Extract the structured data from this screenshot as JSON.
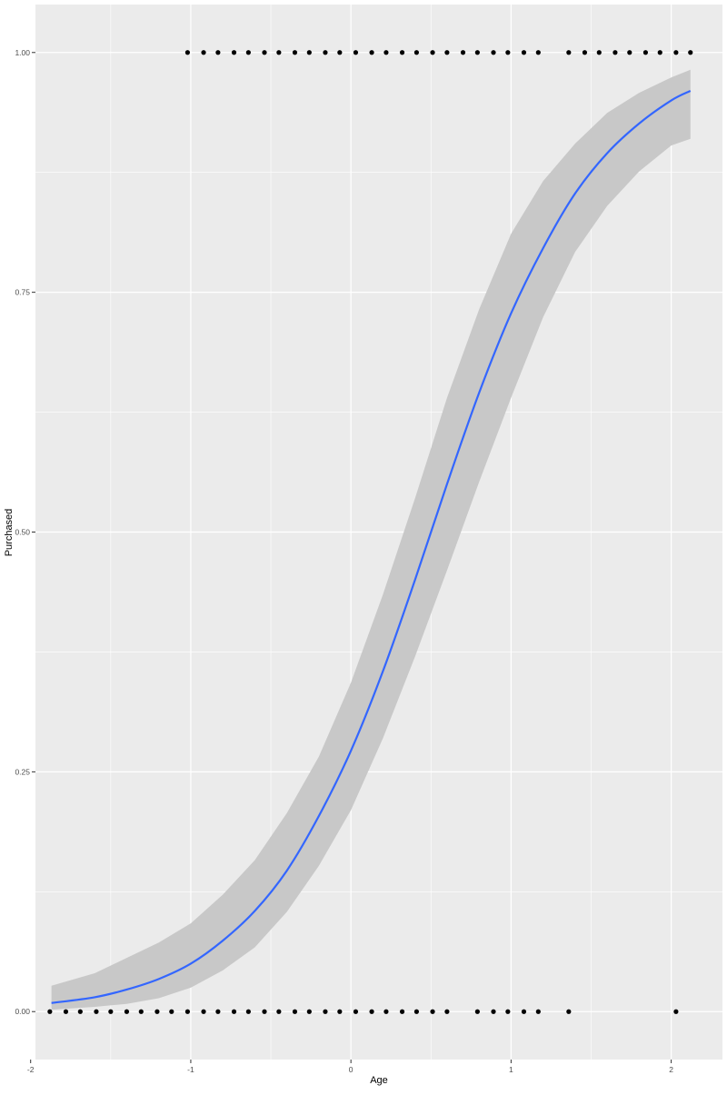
{
  "chart_data": {
    "type": "scatter",
    "title": "",
    "xlabel": "Age",
    "ylabel": "Purchased",
    "xlim": [
      -1.97,
      2.32
    ],
    "ylim": [
      -0.05,
      1.05
    ],
    "grid": true,
    "x_ticks": [
      {
        "value": -2,
        "label": "-2"
      },
      {
        "value": -1,
        "label": "-1"
      },
      {
        "value": 0,
        "label": "0"
      },
      {
        "value": 1,
        "label": "1"
      },
      {
        "value": 2,
        "label": "2"
      }
    ],
    "y_ticks": [
      {
        "value": 0.0,
        "label": "0.00"
      },
      {
        "value": 0.25,
        "label": "0.25"
      },
      {
        "value": 0.5,
        "label": "0.50"
      },
      {
        "value": 0.75,
        "label": "0.75"
      },
      {
        "value": 1.0,
        "label": "1.00"
      }
    ],
    "points_purchased_1": [
      -1.02,
      -0.92,
      -0.83,
      -0.73,
      -0.64,
      -0.54,
      -0.45,
      -0.35,
      -0.26,
      -0.16,
      -0.07,
      0.03,
      0.13,
      0.22,
      0.32,
      0.41,
      0.51,
      0.6,
      0.7,
      0.79,
      0.89,
      0.98,
      1.08,
      1.17,
      1.36,
      1.46,
      1.55,
      1.65,
      1.74,
      1.84,
      1.93,
      2.03,
      2.12
    ],
    "points_purchased_0": [
      -1.88,
      -1.78,
      -1.69,
      -1.59,
      -1.5,
      -1.4,
      -1.31,
      -1.21,
      -1.12,
      -1.02,
      -0.92,
      -0.83,
      -0.73,
      -0.64,
      -0.54,
      -0.45,
      -0.35,
      -0.26,
      -0.16,
      -0.07,
      0.03,
      0.13,
      0.22,
      0.32,
      0.41,
      0.51,
      0.6,
      0.79,
      0.89,
      0.98,
      1.08,
      1.17,
      1.36,
      2.03
    ],
    "fit_curve": {
      "method": "logistic",
      "color": "#3366FF",
      "x": [
        -1.87,
        -1.6,
        -1.4,
        -1.2,
        -1.0,
        -0.8,
        -0.6,
        -0.4,
        -0.2,
        0.0,
        0.2,
        0.4,
        0.6,
        0.8,
        1.0,
        1.2,
        1.4,
        1.6,
        1.8,
        2.0,
        2.12
      ],
      "y": [
        0.009,
        0.015,
        0.023,
        0.034,
        0.05,
        0.074,
        0.105,
        0.147,
        0.204,
        0.272,
        0.355,
        0.45,
        0.55,
        0.645,
        0.728,
        0.796,
        0.853,
        0.895,
        0.926,
        0.95,
        0.96
      ],
      "ci_lower": [
        0.002,
        0.005,
        0.008,
        0.014,
        0.025,
        0.043,
        0.067,
        0.104,
        0.152,
        0.21,
        0.285,
        0.37,
        0.46,
        0.552,
        0.64,
        0.724,
        0.792,
        0.84,
        0.876,
        0.903,
        0.91
      ],
      "ci_upper": [
        0.027,
        0.04,
        0.056,
        0.072,
        0.092,
        0.122,
        0.158,
        0.207,
        0.266,
        0.343,
        0.435,
        0.535,
        0.64,
        0.732,
        0.811,
        0.866,
        0.905,
        0.937,
        0.958,
        0.974,
        0.982
      ],
      "band_color": "#C8C8C8"
    },
    "panel_background": "#EBEBEB",
    "grid_color": "#FFFFFF",
    "point_color": "#000000"
  }
}
